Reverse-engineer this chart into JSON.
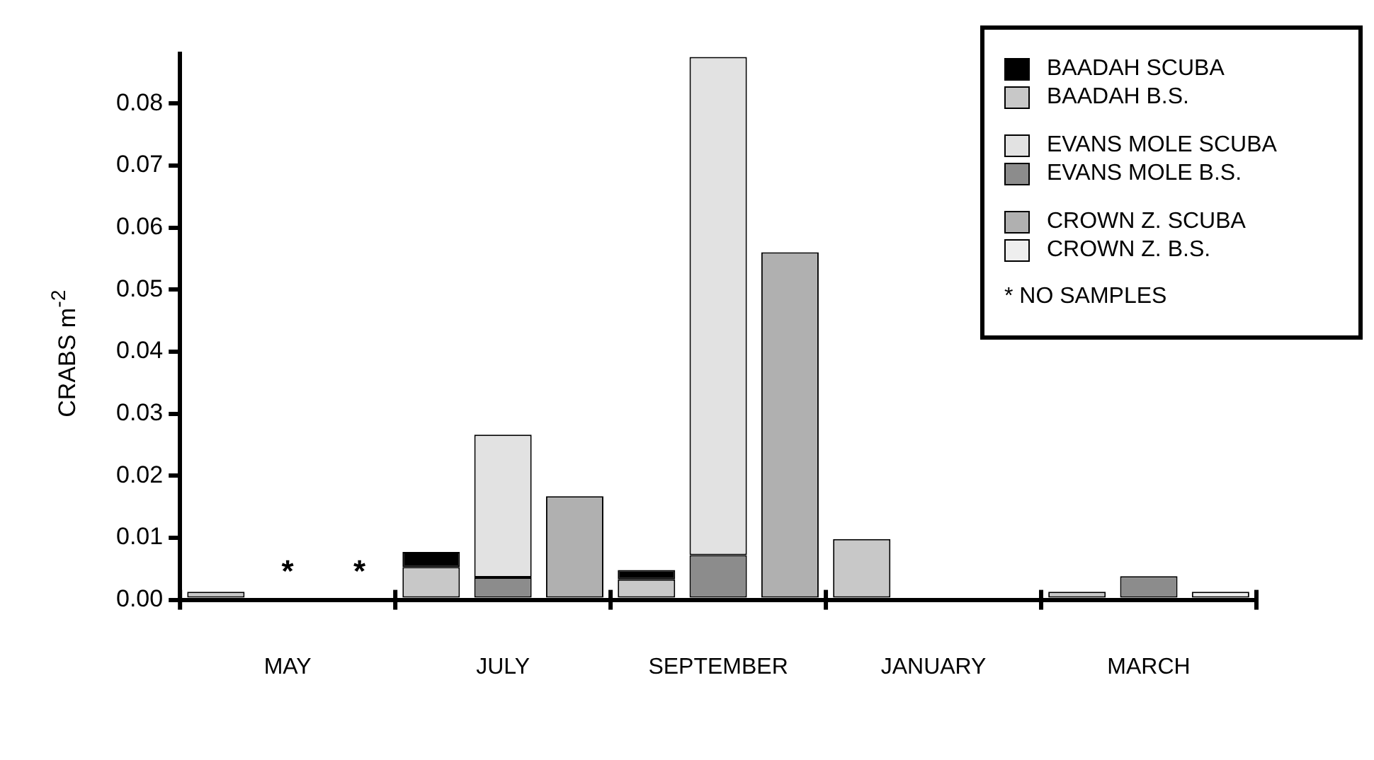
{
  "chart_data": {
    "type": "bar",
    "stacked": true,
    "ylabel": "CRABS m$^{-2}$",
    "legend": "top right",
    "grid": false,
    "categories": [
      null,
      "MAY",
      null,
      null,
      "JULY",
      null,
      null,
      "SEPTEMBER",
      null,
      null,
      "JANUARY",
      null,
      null,
      "MARCH",
      null
    ],
    "series": [
      {
        "name": "BAADAH B.S.",
        "color": "#c8c8c8",
        "values": [
          0.0013,
          null,
          null,
          0.0053,
          null,
          null,
          0.0033,
          null,
          null,
          0.0098,
          null,
          null,
          0.0013,
          null,
          null
        ]
      },
      {
        "name": "BAADAH SCUBA",
        "color": "#000000",
        "values": [
          0,
          null,
          null,
          0.0024,
          null,
          null,
          0.0015,
          null,
          null,
          0,
          null,
          null,
          0,
          null,
          null
        ]
      },
      {
        "name": "EVANS MOLE B.S.",
        "color": "#8c8c8c",
        "values": [
          null,
          null,
          null,
          null,
          0.0036,
          null,
          null,
          0.0072,
          null,
          null,
          0,
          null,
          null,
          0.0038,
          null
        ],
        "value_labels": [
          null,
          "*",
          null,
          null,
          null,
          null,
          null,
          null,
          null,
          null,
          null,
          null,
          null,
          null,
          null
        ]
      },
      {
        "name": "EVANS MOLE SCUBA",
        "color": "#e2e2e2",
        "values": [
          null,
          null,
          null,
          null,
          0.023,
          null,
          null,
          0.0803,
          null,
          null,
          0,
          null,
          null,
          0,
          null
        ]
      },
      {
        "name": "CROWN Z. B.S.",
        "color": "#eeeeee",
        "values": [
          null,
          null,
          null,
          null,
          null,
          0,
          null,
          null,
          0,
          null,
          null,
          0,
          null,
          null,
          0.0013
        ],
        "value_labels": [
          null,
          null,
          "*",
          null,
          null,
          null,
          null,
          null,
          null,
          null,
          null,
          null,
          null,
          null,
          null
        ]
      },
      {
        "name": "CROWN Z. SCUBA",
        "color": "#b0b0b0",
        "values": [
          null,
          null,
          null,
          null,
          null,
          0.0167,
          null,
          null,
          0.056,
          null,
          null,
          0,
          null,
          null,
          0
        ]
      }
    ],
    "ylim": [
      0,
      0.088
    ],
    "yticks": [
      {
        "value": 0,
        "label": "0.00"
      },
      0.01,
      0.02,
      0.03,
      0.04,
      0.05,
      0.06,
      0.07,
      0.08
    ],
    "annotations": [
      "* NO SAMPLES"
    ]
  }
}
